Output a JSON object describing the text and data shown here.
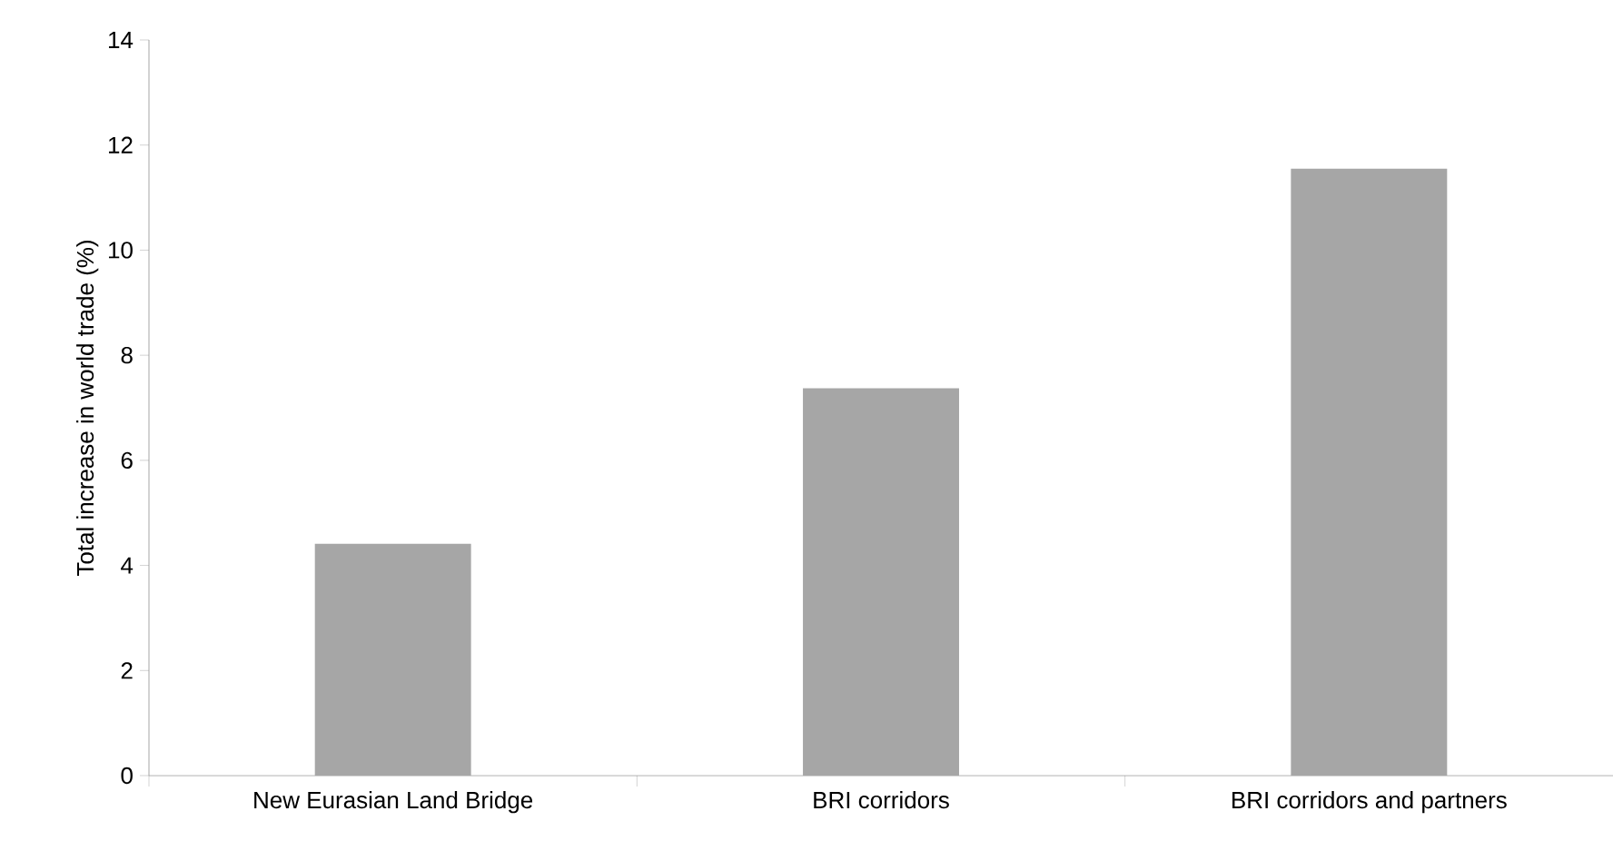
{
  "chart_data": {
    "type": "bar",
    "ylabel": "Total increase in world trade (%)",
    "categories": [
      "New Eurasian Land Bridge",
      "BRI corridors",
      "BRI corridors and partners"
    ],
    "values": [
      4.41,
      7.37,
      11.55
    ],
    "color": "#a6a6a6",
    "ylim": [
      0,
      14
    ],
    "yticks": [
      0,
      2,
      4,
      6,
      8,
      10,
      12,
      14
    ]
  }
}
